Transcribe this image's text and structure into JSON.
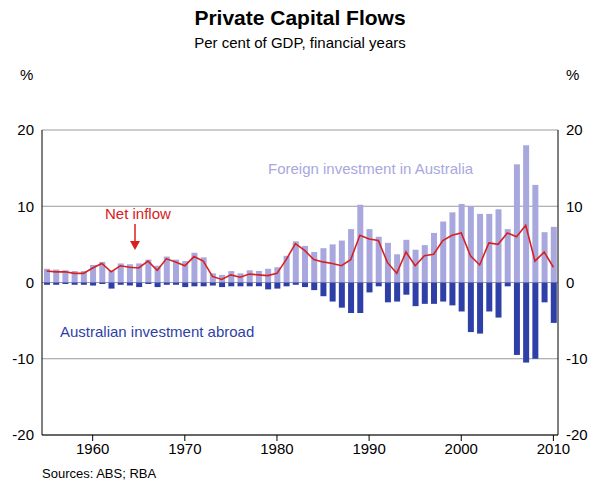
{
  "chart_data": {
    "type": "bar",
    "title": "Private Capital Flows",
    "subtitle": "Per cent of GDP, financial years",
    "y_unit": "%",
    "source": "Sources: ABS; RBA",
    "x": [
      1955,
      1956,
      1957,
      1958,
      1959,
      1960,
      1961,
      1962,
      1963,
      1964,
      1965,
      1966,
      1967,
      1968,
      1969,
      1970,
      1971,
      1972,
      1973,
      1974,
      1975,
      1976,
      1977,
      1978,
      1979,
      1980,
      1981,
      1982,
      1983,
      1984,
      1985,
      1986,
      1987,
      1988,
      1989,
      1990,
      1991,
      1992,
      1993,
      1994,
      1995,
      1996,
      1997,
      1998,
      1999,
      2000,
      2001,
      2002,
      2003,
      2004,
      2005,
      2006,
      2007,
      2008,
      2009,
      2010
    ],
    "series": [
      {
        "name": "Foreign investment in Australia",
        "type": "bar",
        "color": "#a8a8de",
        "values": [
          1.8,
          1.7,
          1.6,
          1.5,
          1.5,
          2.3,
          2.7,
          1.6,
          2.5,
          2.4,
          2.5,
          3.0,
          2.2,
          3.4,
          3.0,
          2.8,
          3.9,
          3.3,
          1.2,
          1.0,
          1.5,
          1.2,
          1.6,
          1.5,
          1.8,
          2.0,
          3.5,
          5.4,
          4.8,
          4.0,
          4.5,
          5.0,
          5.5,
          7.0,
          10.2,
          7.0,
          6.0,
          5.2,
          3.7,
          5.6,
          4.3,
          4.9,
          6.5,
          8.0,
          9.2,
          10.3,
          10.0,
          9.0,
          9.0,
          9.6,
          7.0,
          15.5,
          18.0,
          12.8,
          6.6,
          7.3
        ]
      },
      {
        "name": "Australian investment abroad",
        "type": "bar",
        "color": "#2e3fa8",
        "values": [
          -0.3,
          -0.3,
          -0.2,
          -0.3,
          -0.3,
          -0.4,
          -0.2,
          -0.8,
          -0.3,
          -0.4,
          -0.6,
          -0.2,
          -0.6,
          -0.3,
          -0.3,
          -0.6,
          -0.5,
          -0.5,
          -0.4,
          -0.6,
          -0.5,
          -0.5,
          -0.5,
          -0.5,
          -0.9,
          -0.8,
          -0.5,
          -0.3,
          -0.6,
          -1.0,
          -1.8,
          -2.5,
          -3.3,
          -4.0,
          -4.0,
          -1.3,
          -0.5,
          -2.6,
          -2.5,
          -1.6,
          -3.1,
          -2.8,
          -2.8,
          -2.5,
          -3.0,
          -3.8,
          -6.5,
          -6.7,
          -3.8,
          -4.6,
          -0.5,
          -9.5,
          -10.5,
          -10.0,
          -2.6,
          -5.3
        ]
      },
      {
        "name": "Net inflow",
        "type": "line",
        "color": "#d82020",
        "values": [
          1.5,
          1.4,
          1.4,
          1.2,
          1.2,
          1.9,
          2.5,
          1.4,
          2.2,
          2.0,
          1.9,
          2.8,
          1.6,
          3.1,
          2.7,
          2.2,
          3.4,
          2.8,
          0.8,
          0.4,
          1.0,
          0.7,
          1.1,
          1.0,
          0.9,
          1.2,
          3.0,
          5.1,
          4.2,
          3.0,
          2.7,
          2.5,
          2.2,
          3.0,
          6.2,
          5.7,
          5.5,
          2.6,
          1.2,
          4.0,
          2.2,
          3.5,
          3.7,
          5.5,
          6.2,
          6.5,
          3.5,
          2.3,
          5.2,
          5.0,
          6.5,
          6.0,
          7.5,
          2.8,
          4.0,
          2.0
        ]
      }
    ],
    "xlim": [
      1954.5,
      2010.5
    ],
    "xticks": [
      1960,
      1970,
      1980,
      1990,
      2000,
      2010
    ],
    "ylim": [
      -20,
      20
    ],
    "yticks": [
      -20,
      -10,
      0,
      10,
      20
    ],
    "y2lim": [
      -20,
      20
    ],
    "y2ticks": [
      -20,
      -10,
      0,
      10,
      20
    ],
    "grid": true,
    "stacked": true
  }
}
